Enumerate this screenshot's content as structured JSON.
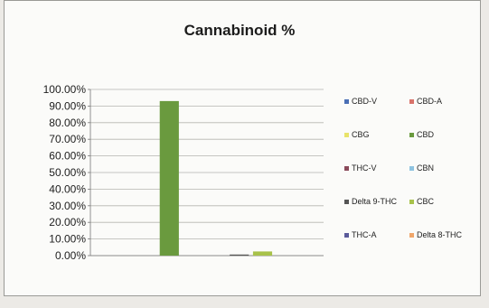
{
  "chart_data": {
    "type": "bar",
    "title": "Cannabinoid %",
    "categories": [
      "CBD-V",
      "CBD-A",
      "CBG",
      "CBD",
      "THC-V",
      "CBN",
      "Delta 9-THC",
      "CBC",
      "THC-A",
      "Delta 8-THC"
    ],
    "values": [
      0,
      0,
      0,
      93.0,
      0,
      0,
      0.3,
      2.5,
      0,
      0
    ],
    "ylim": [
      0,
      100
    ],
    "yticks": [
      "0.00%",
      "10.00%",
      "20.00%",
      "30.00%",
      "40.00%",
      "50.00%",
      "60.00%",
      "70.00%",
      "80.00%",
      "90.00%",
      "100.00%"
    ],
    "legend_position": "right",
    "grid": true,
    "colors": {
      "CBD-V": "#4a6fb5",
      "CBD-A": "#d8736a",
      "CBG": "#e8e36a",
      "CBD": "#6a9a3e",
      "THC-V": "#8a4a5a",
      "CBN": "#8ec3e0",
      "Delta 9-THC": "#555555",
      "CBC": "#a8c24a",
      "THC-A": "#5a5a9a",
      "Delta 8-THC": "#f0a66a"
    }
  }
}
